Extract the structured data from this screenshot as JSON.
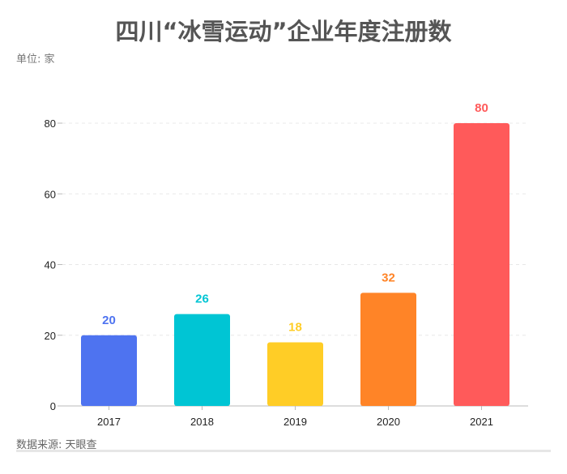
{
  "chart_data": {
    "type": "bar",
    "title": "四川“冰雪运动”企业年度注册数",
    "unit_label": "单位: 家",
    "source": "数据来源: 天眼查",
    "categories": [
      "2017",
      "2018",
      "2019",
      "2020",
      "2021"
    ],
    "values": [
      20,
      26,
      18,
      32,
      80
    ],
    "colors": [
      "#4e73f0",
      "#00c5d4",
      "#ffcd26",
      "#ff8427",
      "#ff5a5a"
    ],
    "ylim": [
      0,
      80
    ],
    "yticks": [
      0,
      20,
      40,
      60,
      80
    ],
    "grid": true,
    "data_labels": true
  }
}
